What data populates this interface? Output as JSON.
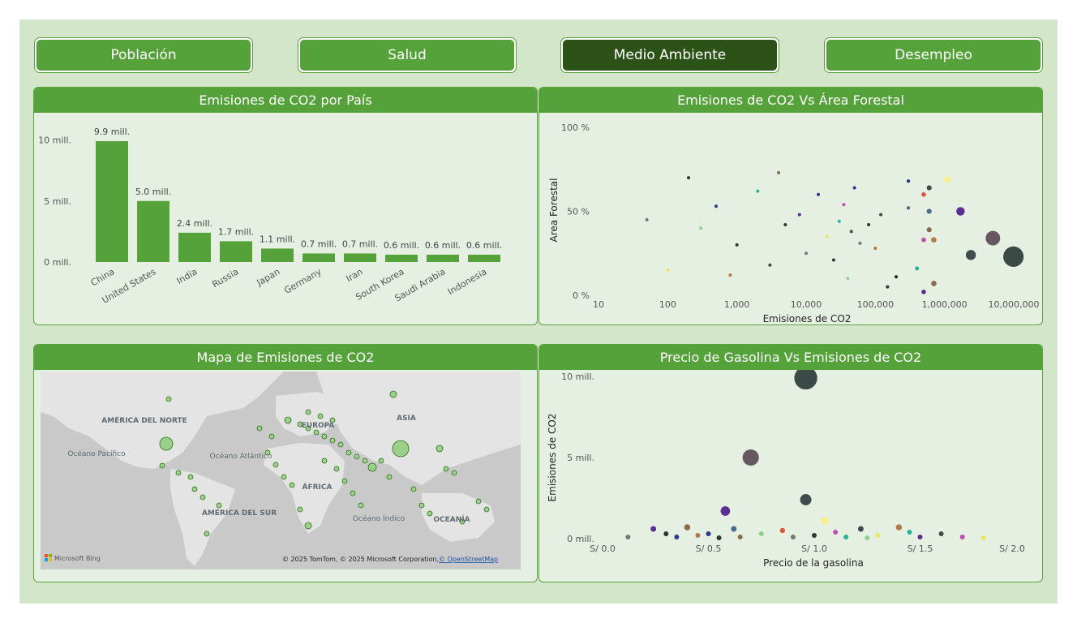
{
  "nav": {
    "buttons": [
      {
        "label": "Población",
        "active": false
      },
      {
        "label": "Salud",
        "active": false
      },
      {
        "label": "Medio Ambiente",
        "active": true
      },
      {
        "label": "Desempleo",
        "active": false
      }
    ]
  },
  "colors": {
    "accent": "#56a23a",
    "active": "#2c5218",
    "background": "#d3e6c9",
    "panel": "#e6f0e2"
  },
  "panels": {
    "bar": {
      "title": "Emisiones de CO2 por País"
    },
    "scatter_forest": {
      "title": "Emisiones de CO2 Vs Área Forestal"
    },
    "map": {
      "title": "Mapa de Emisiones de CO2",
      "labels": {
        "na": "AMÉRICA DEL NORTE",
        "sa": "AMÉRICA DEL SUR",
        "eu": "EUROPA",
        "asia": "ASIA",
        "africa": "ÁFRICA",
        "oceania": "OCEANÍA",
        "pacific": "Océano Pacífico",
        "atlantic": "Océano Atlántico",
        "indian": "Océano Índico"
      },
      "logo": "Microsoft Bing",
      "copyright": "© 2025 TomTom, © 2025 Microsoft Corporation,",
      "osm_link": "© OpenStreetMap"
    },
    "scatter_gas": {
      "title": "Precio de Gasolina Vs Emisiones de CO2"
    }
  },
  "chart_data": [
    {
      "type": "bar",
      "title": "Emisiones de CO2 por País",
      "categories": [
        "China",
        "United States",
        "India",
        "Russia",
        "Japan",
        "Germany",
        "Iran",
        "South Korea",
        "Saudi Arabia",
        "Indonesia"
      ],
      "values": [
        9.9,
        5.0,
        2.4,
        1.7,
        1.1,
        0.7,
        0.7,
        0.6,
        0.6,
        0.6
      ],
      "data_labels": [
        "9.9 mill.",
        "5.0 mill.",
        "2.4 mill.",
        "1.7 mill.",
        "1.1 mill.",
        "0.7 mill.",
        "0.7 mill.",
        "0.6 mill.",
        "0.6 mill.",
        "0.6 mill."
      ],
      "units": "mill.",
      "yticks": [
        "0 mill.",
        "5 mill.",
        "10 mill."
      ],
      "ylim": [
        0,
        10.5
      ],
      "color": "#56a23a"
    },
    {
      "type": "scatter",
      "title": "Emisiones de CO2 Vs Área Forestal",
      "xlabel": "Emisiones de CO2",
      "ylabel": "Area Forestal",
      "xscale": "log",
      "xlim": [
        10,
        10000000
      ],
      "ylim": [
        0,
        100
      ],
      "xticks": [
        "10",
        "100",
        "1,000",
        "10,000",
        "100,000",
        "1,000,000",
        "10,000,000"
      ],
      "yticks": [
        "0 %",
        "50 %",
        "100 %"
      ],
      "points": [
        {
          "x": 9900000,
          "y": 23,
          "c": "#3b4a47"
        },
        {
          "x": 5000000,
          "y": 34,
          "c": "#655860"
        },
        {
          "x": 2400000,
          "y": 24,
          "c": "#3f4d4b"
        },
        {
          "x": 1700000,
          "y": 50,
          "c": "#5b2e91"
        },
        {
          "x": 1100000,
          "y": 69,
          "c": "#f5f28a"
        },
        {
          "x": 700000,
          "y": 33,
          "c": "#b07a4a"
        },
        {
          "x": 700000,
          "y": 7,
          "c": "#8a6a50"
        },
        {
          "x": 600000,
          "y": 64,
          "c": "#3f4d4b"
        },
        {
          "x": 600000,
          "y": 39,
          "c": "#8a6a50"
        },
        {
          "x": 600000,
          "y": 50,
          "c": "#4a6e8a"
        },
        {
          "x": 500000,
          "y": 60,
          "c": "#d85a3a"
        },
        {
          "x": 500000,
          "y": 33,
          "c": "#c04cb0"
        },
        {
          "x": 500000,
          "y": 2,
          "c": "#5b2e91"
        },
        {
          "x": 400000,
          "y": 16,
          "c": "#27b39a"
        },
        {
          "x": 300000,
          "y": 52,
          "c": "#4a6e8a"
        },
        {
          "x": 300000,
          "y": 68,
          "c": "#2a3a8a"
        },
        {
          "x": 200000,
          "y": 11,
          "c": "#222222"
        },
        {
          "x": 150000,
          "y": 5,
          "c": "#333333"
        },
        {
          "x": 120000,
          "y": 48,
          "c": "#3f4d4b"
        },
        {
          "x": 100000,
          "y": 28,
          "c": "#b07a4a"
        },
        {
          "x": 80000,
          "y": 42,
          "c": "#333333"
        },
        {
          "x": 60000,
          "y": 31,
          "c": "#777777"
        },
        {
          "x": 50000,
          "y": 64,
          "c": "#2a3a8a"
        },
        {
          "x": 45000,
          "y": 38,
          "c": "#3f4d4b"
        },
        {
          "x": 40000,
          "y": 10,
          "c": "#8fd18a"
        },
        {
          "x": 35000,
          "y": 54,
          "c": "#c04cb0"
        },
        {
          "x": 30000,
          "y": 44,
          "c": "#27b39a"
        },
        {
          "x": 25000,
          "y": 21,
          "c": "#333333"
        },
        {
          "x": 20000,
          "y": 35,
          "c": "#e8e860"
        },
        {
          "x": 15000,
          "y": 60,
          "c": "#2a3a8a"
        },
        {
          "x": 10000,
          "y": 25,
          "c": "#777777"
        },
        {
          "x": 8000,
          "y": 48,
          "c": "#5b2e91"
        },
        {
          "x": 5000,
          "y": 42,
          "c": "#333333"
        },
        {
          "x": 4000,
          "y": 73,
          "c": "#8a6a50"
        },
        {
          "x": 3000,
          "y": 18,
          "c": "#3b4a47"
        },
        {
          "x": 2000,
          "y": 62,
          "c": "#27b39a"
        },
        {
          "x": 1000,
          "y": 30,
          "c": "#333333"
        },
        {
          "x": 800,
          "y": 12,
          "c": "#b07a4a"
        },
        {
          "x": 500,
          "y": 53,
          "c": "#2a3a8a"
        },
        {
          "x": 300,
          "y": 40,
          "c": "#8fd18a"
        },
        {
          "x": 200,
          "y": 70,
          "c": "#333333"
        },
        {
          "x": 100,
          "y": 15,
          "c": "#e8e860"
        },
        {
          "x": 50,
          "y": 45,
          "c": "#777777"
        }
      ]
    },
    {
      "type": "scatter",
      "title": "Precio de Gasolina Vs Emisiones de CO2",
      "xlabel": "Precio de la gasolina",
      "ylabel": "Emisiones de CO2",
      "xlim": [
        0,
        2.0
      ],
      "ylim": [
        0,
        10
      ],
      "units_y": "mill.",
      "xticks": [
        "S/ 0.0",
        "S/ 0.5",
        "S/ 1.0",
        "S/ 1.5",
        "S/ 2.0"
      ],
      "yticks": [
        "0 mill.",
        "5 mill.",
        "10 mill."
      ],
      "points": [
        {
          "x": 0.96,
          "y": 9.9,
          "c": "#3b4a47"
        },
        {
          "x": 0.7,
          "y": 5.0,
          "c": "#655860"
        },
        {
          "x": 0.96,
          "y": 2.4,
          "c": "#3f4d4b"
        },
        {
          "x": 0.58,
          "y": 1.7,
          "c": "#5b2e91"
        },
        {
          "x": 1.05,
          "y": 1.1,
          "c": "#f5f28a"
        },
        {
          "x": 1.4,
          "y": 0.7,
          "c": "#b07a4a"
        },
        {
          "x": 0.4,
          "y": 0.7,
          "c": "#8a6a50"
        },
        {
          "x": 1.22,
          "y": 0.6,
          "c": "#3f4d4b"
        },
        {
          "x": 0.62,
          "y": 0.6,
          "c": "#4a6e8a"
        },
        {
          "x": 0.24,
          "y": 0.6,
          "c": "#5b2e91"
        },
        {
          "x": 0.85,
          "y": 0.5,
          "c": "#d85a3a"
        },
        {
          "x": 1.1,
          "y": 0.4,
          "c": "#c04cb0"
        },
        {
          "x": 1.45,
          "y": 0.4,
          "c": "#27b39a"
        },
        {
          "x": 0.5,
          "y": 0.3,
          "c": "#2a3a8a"
        },
        {
          "x": 0.3,
          "y": 0.3,
          "c": "#333333"
        },
        {
          "x": 1.6,
          "y": 0.3,
          "c": "#3f4d4b"
        },
        {
          "x": 0.75,
          "y": 0.3,
          "c": "#8fd18a"
        },
        {
          "x": 1.3,
          "y": 0.2,
          "c": "#e8e860"
        },
        {
          "x": 0.45,
          "y": 0.2,
          "c": "#b07a4a"
        },
        {
          "x": 1.0,
          "y": 0.2,
          "c": "#333333"
        },
        {
          "x": 0.9,
          "y": 0.1,
          "c": "#777777"
        },
        {
          "x": 1.7,
          "y": 0.1,
          "c": "#c04cb0"
        },
        {
          "x": 0.12,
          "y": 0.1,
          "c": "#777777"
        },
        {
          "x": 1.15,
          "y": 0.1,
          "c": "#27b39a"
        },
        {
          "x": 0.35,
          "y": 0.1,
          "c": "#2a3a8a"
        },
        {
          "x": 0.65,
          "y": 0.1,
          "c": "#8a6a50"
        },
        {
          "x": 1.5,
          "y": 0.1,
          "c": "#5b2e91"
        },
        {
          "x": 1.8,
          "y": 0.05,
          "c": "#e8e860"
        },
        {
          "x": 0.55,
          "y": 0.05,
          "c": "#333333"
        },
        {
          "x": 1.25,
          "y": 0.05,
          "c": "#8fd18a"
        }
      ]
    }
  ]
}
